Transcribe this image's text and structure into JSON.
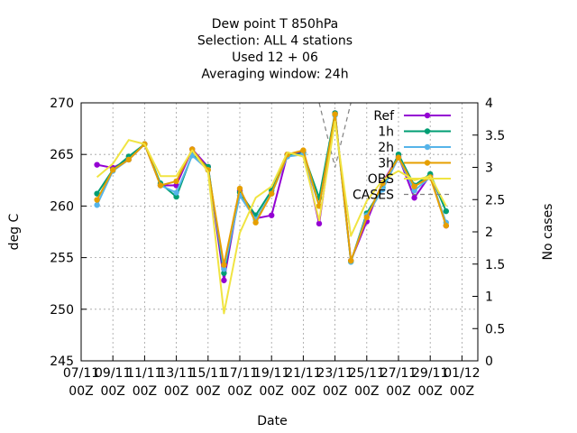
{
  "chart_data": {
    "type": "line",
    "title_lines": [
      "Dew point T 850hPa",
      "Selection: ALL      4 stations",
      "Used  12 + 06",
      "Averaging window: 24h"
    ],
    "xlabel": "Date",
    "ylabel": "deg C",
    "y2label": "No cases",
    "ylim": [
      245,
      270
    ],
    "y2lim": [
      0,
      4
    ],
    "yticks": [
      "245",
      "250",
      "255",
      "260",
      "265",
      "270"
    ],
    "y2ticks": [
      "0",
      "0.5",
      "1",
      "1.5",
      "2",
      "2.5",
      "3",
      "3.5",
      "4"
    ],
    "xlim": [
      0,
      25
    ],
    "xticks": [
      {
        "x": 0,
        "l1": "07/11",
        "l2": "00Z"
      },
      {
        "x": 2,
        "l1": "09/11",
        "l2": "00Z"
      },
      {
        "x": 4,
        "l1": "11/11",
        "l2": "00Z"
      },
      {
        "x": 6,
        "l1": "13/11",
        "l2": "00Z"
      },
      {
        "x": 8,
        "l1": "15/11",
        "l2": "00Z"
      },
      {
        "x": 10,
        "l1": "17/11",
        "l2": "00Z"
      },
      {
        "x": 12,
        "l1": "19/11",
        "l2": "00Z"
      },
      {
        "x": 14,
        "l1": "21/11",
        "l2": "00Z"
      },
      {
        "x": 16,
        "l1": "23/11",
        "l2": "00Z"
      },
      {
        "x": 18,
        "l1": "25/11",
        "l2": "00Z"
      },
      {
        "x": 20,
        "l1": "27/11",
        "l2": "00Z"
      },
      {
        "x": 22,
        "l1": "29/11",
        "l2": "00Z"
      },
      {
        "x": 24,
        "l1": "01/12",
        "l2": "00Z"
      }
    ],
    "grid": true,
    "legend_position": "top-right",
    "x": [
      1,
      2,
      3,
      4,
      5,
      6,
      7,
      8,
      9,
      10,
      11,
      12,
      13,
      14,
      15,
      16,
      17,
      18,
      19,
      20,
      21,
      22,
      23,
      24
    ],
    "series": [
      {
        "name": "Ref",
        "color": "#9400d3",
        "marker": true,
        "values": [
          264.0,
          263.7,
          264.5,
          266.0,
          262.0,
          262.0,
          265.5,
          263.8,
          252.8,
          261.5,
          258.8,
          259.1,
          265.0,
          265.2,
          258.3,
          269.0,
          254.7,
          258.5,
          262.3,
          264.8,
          260.8,
          263.0,
          258.1,
          null
        ]
      },
      {
        "name": "1h",
        "color": "#009e73",
        "marker": true,
        "values": [
          261.2,
          263.5,
          264.8,
          266.0,
          262.2,
          260.9,
          265.0,
          263.8,
          253.5,
          261.3,
          259.1,
          261.5,
          264.9,
          265.1,
          260.8,
          269.0,
          254.6,
          259.3,
          261.8,
          265.0,
          262.0,
          263.1,
          259.5,
          null
        ]
      },
      {
        "name": "2h",
        "color": "#56b4e9",
        "marker": true,
        "values": [
          260.1,
          263.4,
          264.5,
          266.0,
          262.0,
          261.3,
          264.9,
          263.5,
          253.9,
          261.0,
          258.7,
          261.2,
          264.8,
          265.0,
          260.0,
          268.8,
          254.6,
          259.1,
          261.6,
          264.7,
          261.5,
          262.8,
          258.4,
          null
        ]
      },
      {
        "name": "3h",
        "color": "#e69f00",
        "marker": true,
        "values": [
          260.6,
          263.5,
          264.5,
          266.0,
          262.0,
          262.4,
          265.5,
          263.5,
          254.3,
          261.7,
          258.4,
          261.2,
          265.0,
          265.4,
          260.0,
          268.9,
          254.7,
          258.9,
          262.2,
          264.7,
          261.9,
          262.8,
          258.1,
          null
        ]
      },
      {
        "name": "OBS",
        "color": "#f0e442",
        "marker": false,
        "values": [
          262.8,
          264.1,
          266.4,
          266.0,
          262.9,
          262.9,
          265.4,
          263.3,
          249.6,
          257.4,
          260.8,
          261.9,
          265.2,
          264.8,
          258.6,
          268.2,
          257.1,
          260.5,
          262.5,
          263.4,
          262.5,
          262.9,
          260.0,
          null
        ]
      }
    ],
    "cases": {
      "name": "CASES",
      "color": "#808080",
      "style": "dashed",
      "axis": "y2",
      "x": [
        15,
        15.5,
        16,
        16.5,
        17
      ],
      "values": [
        4,
        3.5,
        3,
        3.5,
        4
      ]
    }
  }
}
